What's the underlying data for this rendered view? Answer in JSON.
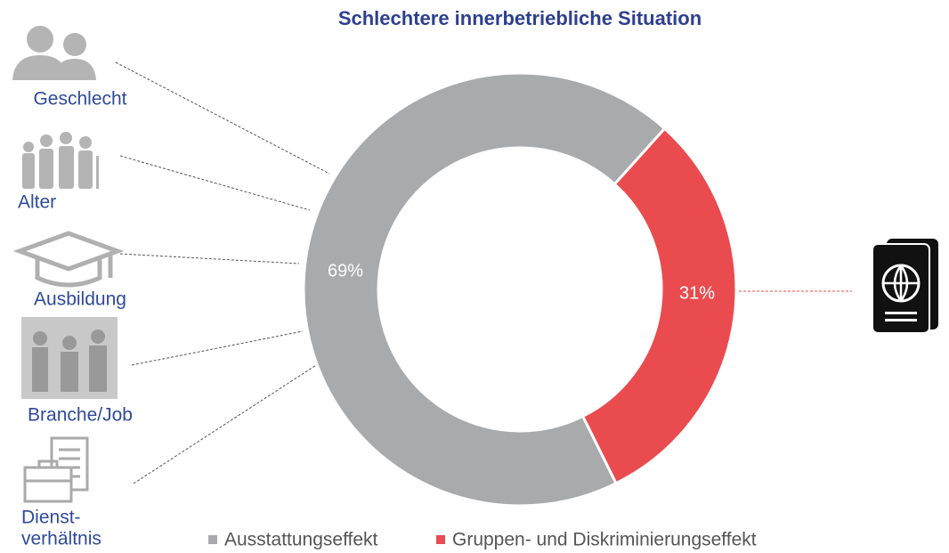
{
  "chart_data": {
    "type": "donut",
    "title": "Schlechtere innerbetriebliche Situation",
    "categories": [
      "Ausstattungseffekt",
      "Gruppen- und Diskriminierungseffekt"
    ],
    "values": [
      69,
      31
    ],
    "value_labels": [
      "69%",
      "31%"
    ],
    "colors": [
      "#a9aaac",
      "#ea4b4f"
    ]
  },
  "factors": [
    [
      "Geschlecht"
    ],
    [
      "Alter"
    ],
    [
      "Ausbildung"
    ],
    [
      "Branche/Job"
    ],
    [
      "Dienst-",
      "verhältnis"
    ]
  ]
}
